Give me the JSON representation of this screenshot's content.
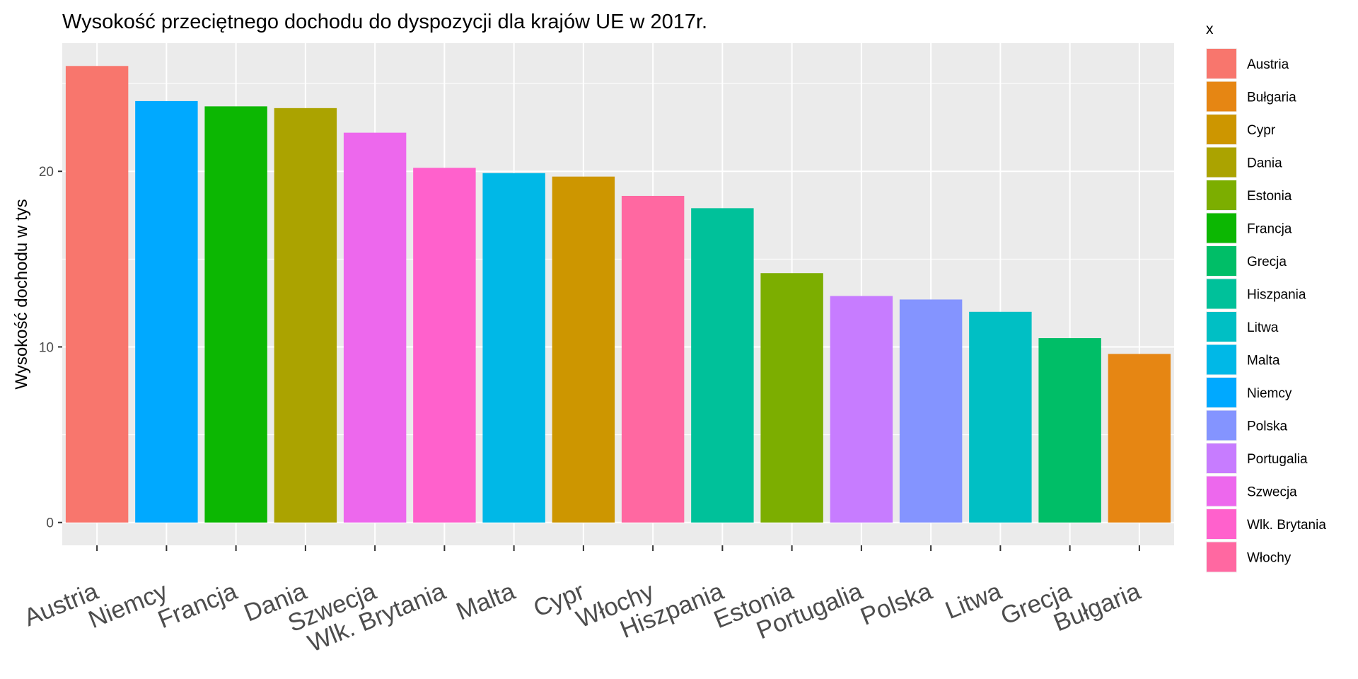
{
  "chart_data": {
    "type": "bar",
    "title": "Wysokość przeciętnego dochodu do dyspozycji dla krajów UE w 2017r.",
    "xlabel": "",
    "ylabel": "Wysokość dochodu w tys",
    "categories": [
      "Austria",
      "Niemcy",
      "Francja",
      "Dania",
      "Szwecja",
      "Wlk. Brytania",
      "Malta",
      "Cypr",
      "Włochy",
      "Hiszpania",
      "Estonia",
      "Portugalia",
      "Polska",
      "Litwa",
      "Grecja",
      "Bułgaria"
    ],
    "values": [
      26.0,
      24.0,
      23.7,
      23.6,
      22.2,
      20.2,
      19.9,
      19.7,
      18.6,
      17.9,
      14.2,
      12.9,
      12.7,
      12.0,
      10.5,
      9.6
    ],
    "bar_colors": [
      "#F8766D",
      "#00A9FF",
      "#0CB702",
      "#ABA300",
      "#ED68ED",
      "#FF61CC",
      "#00B8E7",
      "#CD9600",
      "#FF68A1",
      "#00C19A",
      "#7CAE00",
      "#C77CFF",
      "#8494FF",
      "#00BFC4",
      "#00BE67",
      "#E68613"
    ],
    "ylim": [
      -1.3,
      27.3
    ],
    "yticks": [
      0,
      10,
      20
    ],
    "grid": true,
    "legend": {
      "title": "x",
      "placement": "right",
      "entries": [
        {
          "label": "Austria",
          "color": "#F8766D"
        },
        {
          "label": "Bułgaria",
          "color": "#E68613"
        },
        {
          "label": "Cypr",
          "color": "#CD9600"
        },
        {
          "label": "Dania",
          "color": "#ABA300"
        },
        {
          "label": "Estonia",
          "color": "#7CAE00"
        },
        {
          "label": "Francja",
          "color": "#0CB702"
        },
        {
          "label": "Grecja",
          "color": "#00BE67"
        },
        {
          "label": "Hiszpania",
          "color": "#00C19A"
        },
        {
          "label": "Litwa",
          "color": "#00BFC4"
        },
        {
          "label": "Malta",
          "color": "#00B8E7"
        },
        {
          "label": "Niemcy",
          "color": "#00A9FF"
        },
        {
          "label": "Polska",
          "color": "#8494FF"
        },
        {
          "label": "Portugalia",
          "color": "#C77CFF"
        },
        {
          "label": "Szwecja",
          "color": "#ED68ED"
        },
        {
          "label": "Wlk. Brytania",
          "color": "#FF61CC"
        },
        {
          "label": "Włochy",
          "color": "#FF68A1"
        }
      ]
    }
  }
}
